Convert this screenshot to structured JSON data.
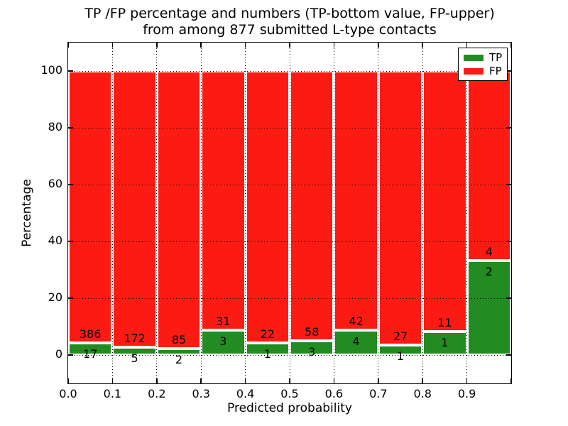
{
  "chart_data": {
    "type": "bar",
    "stacked": true,
    "units": "percent",
    "title_line1": "TP /FP percentage and numbers (TP-bottom value, FP-upper)",
    "title_line2": "from among 877 submitted L-type contacts",
    "xlabel": "Predicted probability",
    "ylabel": "Percentage",
    "xlim": [
      0.0,
      1.0
    ],
    "ylim": [
      -10,
      110
    ],
    "x_tick_labels": [
      "0.0",
      "0.1",
      "0.2",
      "0.3",
      "0.4",
      "0.5",
      "0.6",
      "0.7",
      "0.8",
      "0.9"
    ],
    "y_tick_labels": [
      "0",
      "20",
      "40",
      "60",
      "80",
      "100"
    ],
    "grid_style": "dotted",
    "total_contacts": 877,
    "bin_width": 0.1,
    "legend": {
      "position": "upper right",
      "entries": [
        {
          "label": "TP",
          "color": "#228b22"
        },
        {
          "label": "FP",
          "color": "#fb1b12"
        }
      ]
    },
    "bins": [
      {
        "x_start": 0.0,
        "x_end": 0.1,
        "tp": 17,
        "fp": 386,
        "tp_pct": 4.22
      },
      {
        "x_start": 0.1,
        "x_end": 0.2,
        "tp": 5,
        "fp": 172,
        "tp_pct": 2.82
      },
      {
        "x_start": 0.2,
        "x_end": 0.3,
        "tp": 2,
        "fp": 85,
        "tp_pct": 2.3
      },
      {
        "x_start": 0.3,
        "x_end": 0.4,
        "tp": 3,
        "fp": 31,
        "tp_pct": 8.82
      },
      {
        "x_start": 0.4,
        "x_end": 0.5,
        "tp": 1,
        "fp": 22,
        "tp_pct": 4.35
      },
      {
        "x_start": 0.5,
        "x_end": 0.6,
        "tp": 3,
        "fp": 58,
        "tp_pct": 4.92
      },
      {
        "x_start": 0.6,
        "x_end": 0.7,
        "tp": 4,
        "fp": 42,
        "tp_pct": 8.7
      },
      {
        "x_start": 0.7,
        "x_end": 0.8,
        "tp": 1,
        "fp": 27,
        "tp_pct": 3.57
      },
      {
        "x_start": 0.8,
        "x_end": 0.9,
        "tp": 1,
        "fp": 11,
        "tp_pct": 8.33
      },
      {
        "x_start": 0.9,
        "x_end": 1.0,
        "tp": 2,
        "fp": 4,
        "tp_pct": 33.33
      }
    ]
  }
}
